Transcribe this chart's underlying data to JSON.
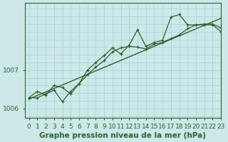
{
  "xlabel": "Graphe pression niveau de la mer (hPa)",
  "background_color": "#cce8e8",
  "grid_color": "#b0d8d8",
  "line_color": "#2d6030",
  "xlim": [
    -0.5,
    23
  ],
  "ylim": [
    1005.75,
    1008.75
  ],
  "yticks": [
    1006,
    1007
  ],
  "xticks": [
    0,
    1,
    2,
    3,
    4,
    5,
    6,
    7,
    8,
    9,
    10,
    11,
    12,
    13,
    14,
    15,
    16,
    17,
    18,
    19,
    20,
    21,
    22,
    23
  ],
  "line1_x": [
    0,
    23
  ],
  "line1_y": [
    1006.25,
    1008.35
  ],
  "line2_x": [
    0,
    1,
    2,
    3,
    4,
    5,
    6,
    7,
    8,
    9,
    10,
    11,
    12,
    13,
    14,
    15,
    16,
    17,
    18,
    19,
    20,
    21,
    22,
    23
  ],
  "line2_y": [
    1006.28,
    1006.45,
    1006.35,
    1006.6,
    1006.55,
    1006.38,
    1006.65,
    1006.88,
    1007.08,
    1007.25,
    1007.48,
    1007.58,
    1007.62,
    1007.6,
    1007.55,
    1007.68,
    1007.72,
    1007.82,
    1007.92,
    1008.08,
    1008.18,
    1008.2,
    1008.2,
    1008.1
  ],
  "line3_x": [
    0,
    1,
    2,
    3,
    4,
    5,
    6,
    7,
    8,
    9,
    10,
    11,
    12,
    13,
    14,
    15,
    16,
    17,
    18,
    19,
    20,
    21,
    22,
    23
  ],
  "line3_y": [
    1006.28,
    1006.28,
    1006.38,
    1006.48,
    1006.18,
    1006.45,
    1006.65,
    1007.0,
    1007.2,
    1007.38,
    1007.58,
    1007.42,
    1007.65,
    1008.05,
    1007.62,
    1007.72,
    1007.78,
    1008.38,
    1008.45,
    1008.18,
    1008.18,
    1008.18,
    1008.18,
    1008.0
  ],
  "font_color": "#2d6030",
  "tick_fontsize": 6.5,
  "xlabel_fontsize": 7.5
}
